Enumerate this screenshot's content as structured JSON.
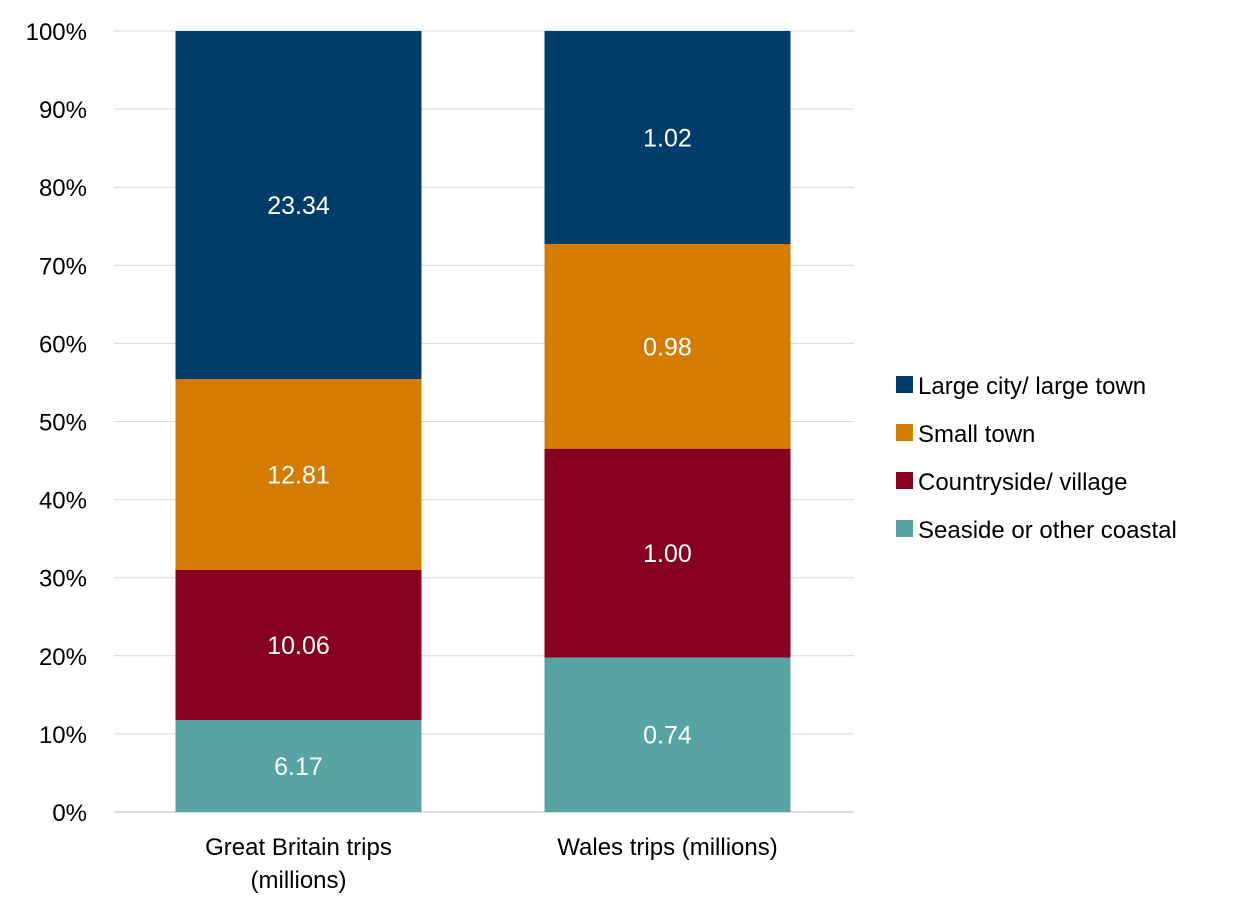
{
  "chart_data": {
    "type": "bar",
    "stacked": true,
    "percent_stacked": true,
    "title": "",
    "xlabel": "",
    "ylabel": "",
    "ylim": [
      0,
      100
    ],
    "y_ticks": [
      "0%",
      "10%",
      "20%",
      "30%",
      "40%",
      "50%",
      "60%",
      "70%",
      "80%",
      "90%",
      "100%"
    ],
    "grid": true,
    "legend_position": "right",
    "categories": [
      [
        "Great Britain trips",
        "(millions)"
      ],
      [
        "Wales trips (millions)"
      ]
    ],
    "series": [
      {
        "name": "Seaside or other coastal",
        "color": "#58a3a3",
        "values": [
          6.17,
          0.74
        ],
        "labels": [
          "6.17",
          "0.74"
        ]
      },
      {
        "name": "Countryside/ village",
        "color": "#86001f",
        "values": [
          10.06,
          1.0
        ],
        "labels": [
          "10.06",
          "1.00"
        ]
      },
      {
        "name": "Small town",
        "color": "#d47c00",
        "values": [
          12.81,
          0.98
        ],
        "labels": [
          "12.81",
          "0.98"
        ]
      },
      {
        "name": "Large city/ large town",
        "color": "#003d6b",
        "values": [
          23.34,
          1.02
        ],
        "labels": [
          "23.34",
          "1.02"
        ]
      }
    ],
    "legend_order": [
      "Large city/ large town",
      "Small town",
      "Countryside/ village",
      "Seaside or other coastal"
    ]
  }
}
